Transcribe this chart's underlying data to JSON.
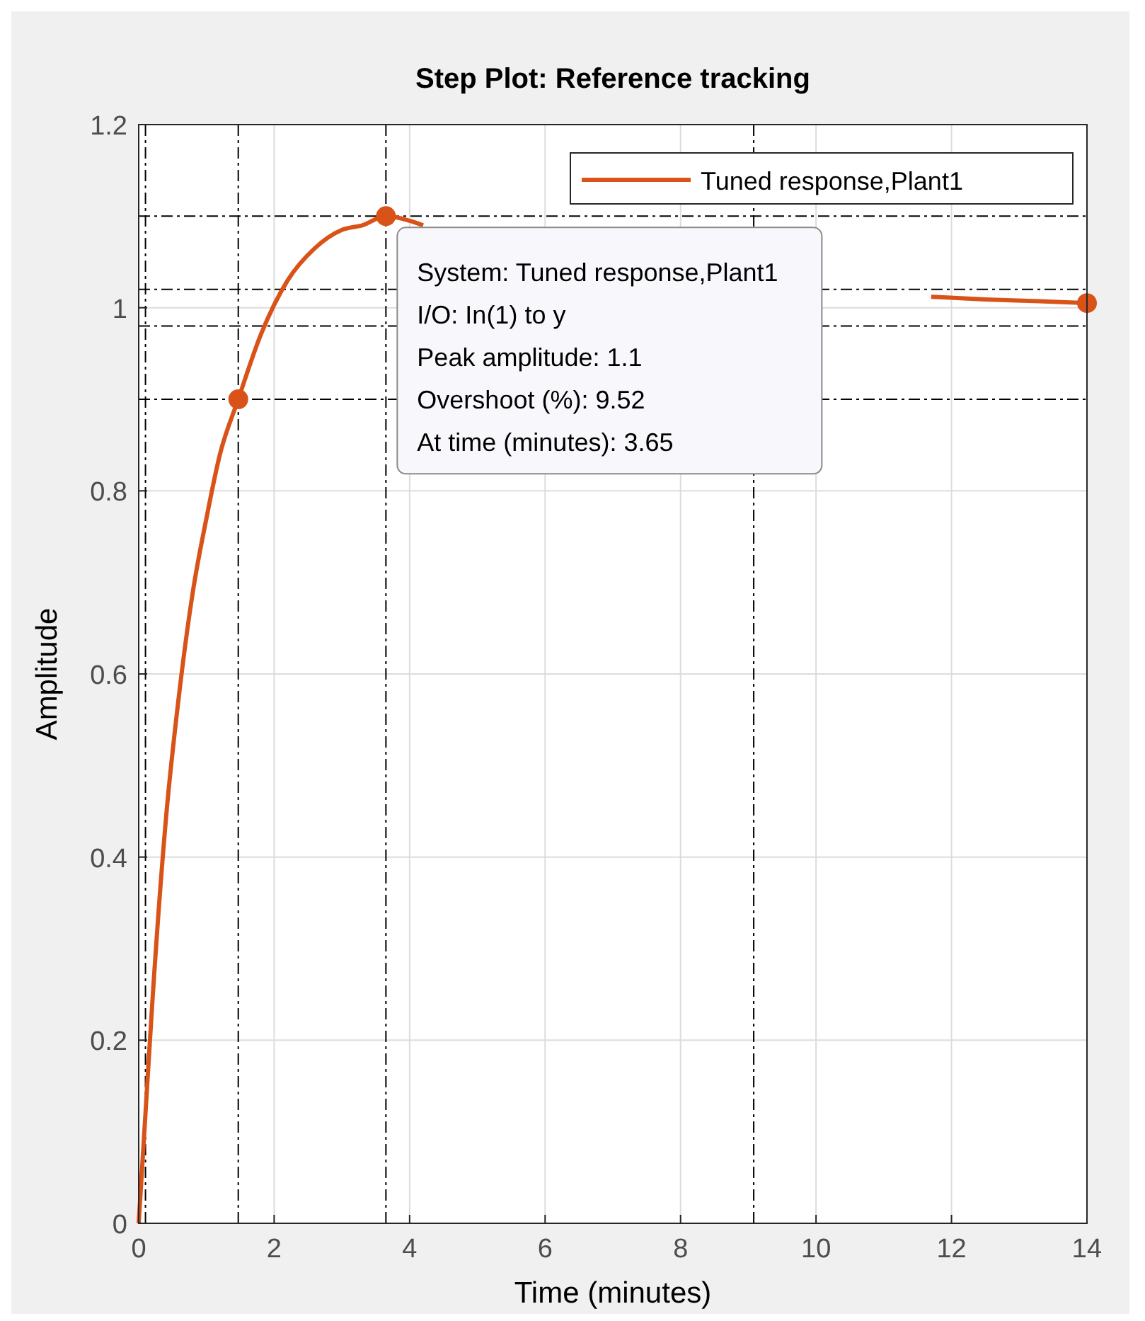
{
  "chart_data": {
    "type": "line",
    "title": "Step Plot: Reference tracking",
    "xlabel": "Time (minutes)",
    "ylabel": "Amplitude",
    "xlim": [
      0,
      14
    ],
    "xticks": [
      0,
      2,
      4,
      6,
      8,
      10,
      12,
      14
    ],
    "ylim": [
      0,
      1.2
    ],
    "yticks": [
      0,
      0.2,
      0.4,
      0.6,
      0.8,
      1,
      1.2
    ],
    "grid": true,
    "legend": "top right",
    "series": [
      {
        "name": "Tuned response,Plant1",
        "color": "#d95319",
        "x": [
          0,
          0.1,
          0.2,
          0.4,
          0.6,
          0.8,
          1.0,
          1.2,
          1.47,
          1.8,
          2.2,
          2.6,
          3.0,
          3.3,
          3.65,
          4.0,
          4.2,
          8,
          11.7,
          12.5,
          13.3,
          14
        ],
        "values": [
          0,
          0.12,
          0.24,
          0.44,
          0.58,
          0.69,
          0.77,
          0.84,
          0.9,
          0.97,
          1.03,
          1.065,
          1.085,
          1.09,
          1.1,
          1.095,
          1.09,
          null,
          1.012,
          1.009,
          1.007,
          1.005
        ]
      },
      {
        "type": "scatter",
        "marker": "circle",
        "color": "#d95319",
        "x": [
          1.47,
          3.65,
          14
        ],
        "values": [
          0.9,
          1.1,
          1.005
        ]
      }
    ],
    "ref_lines": [
      {
        "axis": "x",
        "value": 0.1,
        "color": "#000000",
        "line_style": "dashdot"
      },
      {
        "axis": "x",
        "value": 1.47,
        "color": "#000000",
        "line_style": "dashdot"
      },
      {
        "axis": "x",
        "value": 3.65,
        "color": "#000000",
        "line_style": "dashdot"
      },
      {
        "axis": "x",
        "value": 9.08,
        "color": "#000000",
        "line_style": "dashdot"
      },
      {
        "axis": "y",
        "value": 0.9,
        "color": "#000000",
        "line_style": "dashdot"
      },
      {
        "axis": "y",
        "value": 1.1,
        "color": "#000000",
        "line_style": "dashdot"
      },
      {
        "axis": "y",
        "value": 1.02,
        "color": "#000000",
        "line_style": "dashdot"
      },
      {
        "axis": "y",
        "value": 0.98,
        "color": "#000000",
        "line_style": "dashdot"
      }
    ],
    "annotations": [
      {
        "text": "System: Tuned response,Plant1\nI/O: In(1) to y\nPeak amplitude: 1.1\nOvershoot (%): 9.52\nAt time (minutes): 3.65",
        "x": 3.65,
        "y": 1.1
      }
    ]
  }
}
